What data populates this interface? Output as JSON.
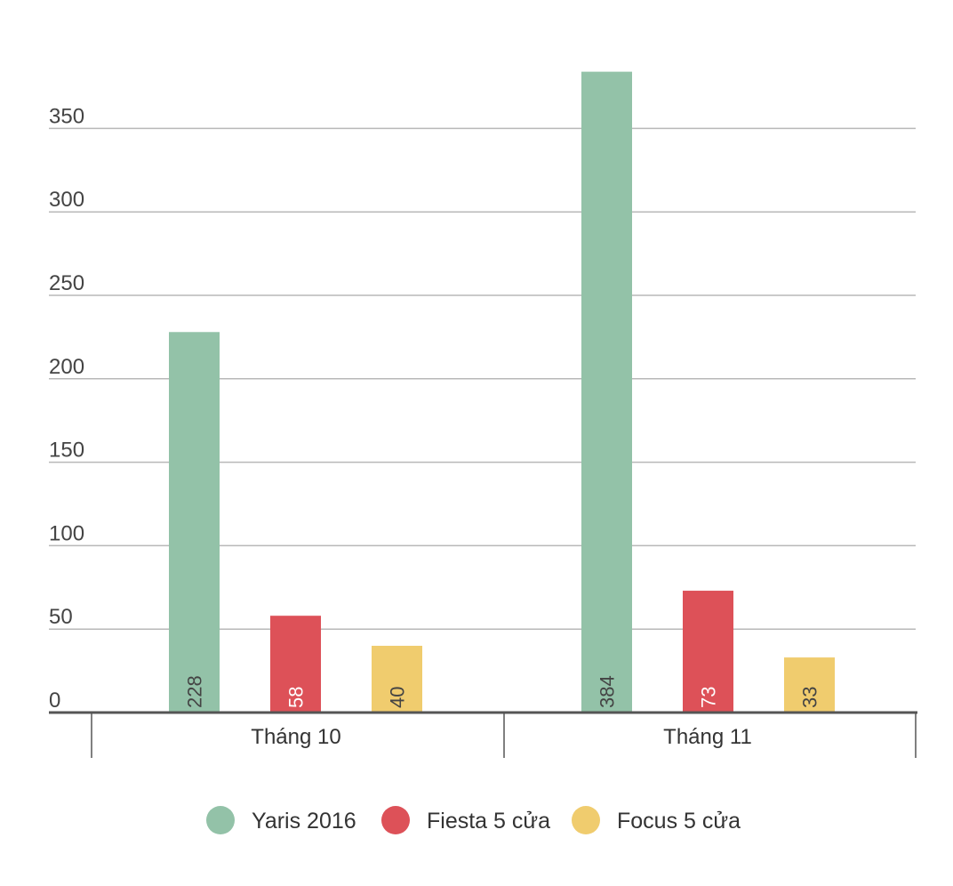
{
  "chart_data": {
    "type": "bar",
    "categories": [
      "Tháng 10",
      "Tháng 11"
    ],
    "series": [
      {
        "name": "Yaris 2016",
        "color": "#93c2a8",
        "label_color": "#444444",
        "values": [
          228,
          384
        ]
      },
      {
        "name": "Fiesta 5 cửa",
        "color": "#dd5158",
        "label_color": "#ffffff",
        "values": [
          58,
          73
        ]
      },
      {
        "name": "Focus 5 cửa",
        "color": "#f0cc6e",
        "label_color": "#444444",
        "values": [
          40,
          33
        ]
      }
    ],
    "yticks": [
      0,
      50,
      100,
      150,
      200,
      250,
      300,
      350
    ],
    "ylim": [
      0,
      385
    ],
    "grid": true,
    "legend_position": "bottom",
    "title": "",
    "xlabel": "",
    "ylabel": ""
  }
}
